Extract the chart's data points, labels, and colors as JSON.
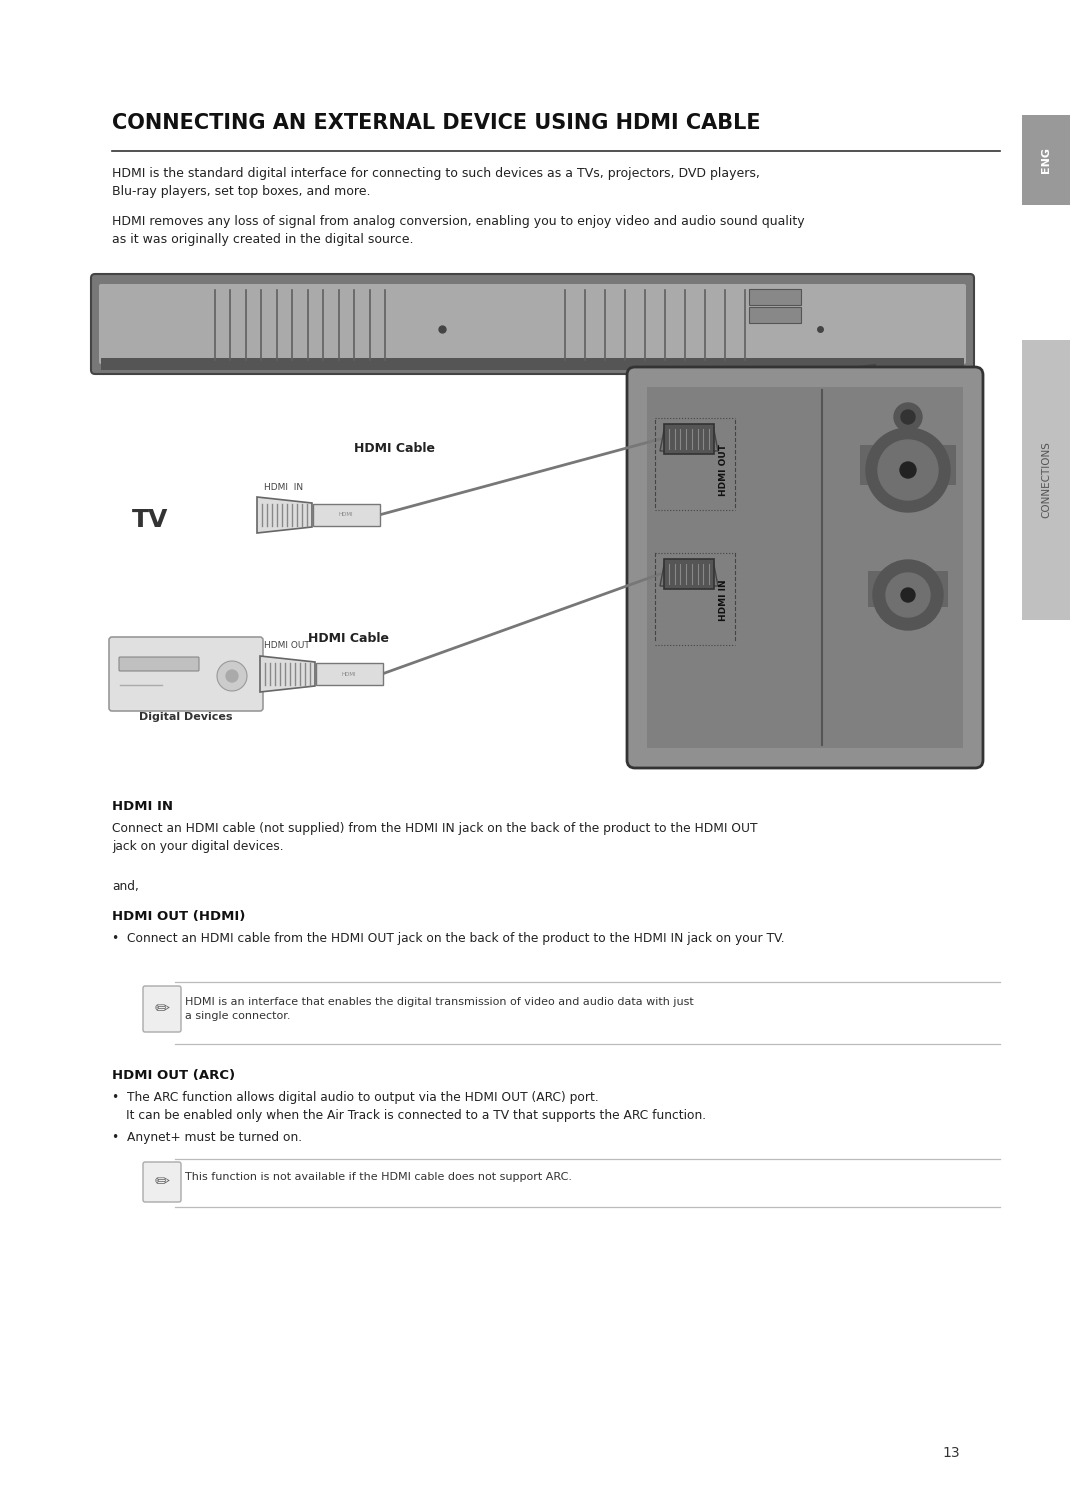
{
  "title": "CONNECTING AN EXTERNAL DEVICE USING HDMI CABLE",
  "bg_color": "#ffffff",
  "para1": "HDMI is the standard digital interface for connecting to such devices as a TVs, projectors, DVD players,\nBlu-ray players, set top boxes, and more.",
  "para2": "HDMI removes any loss of signal from analog conversion, enabling you to enjoy video and audio sound quality\nas it was originally created in the digital source.",
  "hdmi_in_header": "HDMI IN",
  "hdmi_in_body": "Connect an HDMI cable (not supplied) from the HDMI IN jack on the back of the product to the HDMI OUT\njack on your digital devices.",
  "and_text": "and,",
  "hdmi_out_hdmi_header": "HDMI OUT (HDMI)",
  "hdmi_out_hdmi_bullet": "Connect an HDMI cable from the HDMI OUT jack on the back of the product to the HDMI IN jack on your TV.",
  "note1_text": "HDMI is an interface that enables the digital transmission of video and audio data with just\na single connector.",
  "hdmi_out_arc_header": "HDMI OUT (ARC)",
  "hdmi_out_arc_bullet1a": "The ARC function allows digital audio to output via the HDMI OUT (ARC) port.",
  "hdmi_out_arc_bullet1b": "It can be enabled only when the Air Track is connected to a TV that supports the ARC function.",
  "hdmi_out_arc_bullet2": "Anynet+ must be turned on.",
  "note2_text": "This function is not available if the HDMI cable does not support ARC.",
  "page_number": "13",
  "eng_tab": "ENG",
  "connections_tab": "CONNECTIONS",
  "tv_label": "TV",
  "hdmi_in_label": "HDMI  IN",
  "hdmi_out_label": "HDMI OUT",
  "hdmi_cable_label1": "HDMI Cable",
  "hdmi_cable_label2": "HDMI Cable",
  "hdmi_out_vertical": "HDMI OUT",
  "hdmi_in_vertical": "HDMI IN",
  "digital_devices_label": "Digital Devices"
}
